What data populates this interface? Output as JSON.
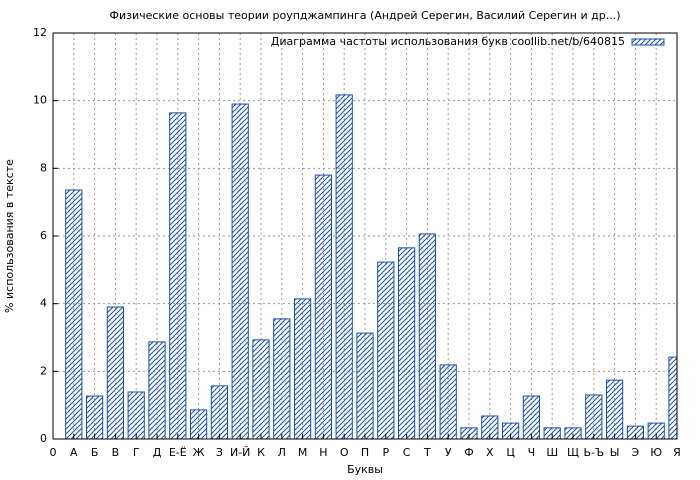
{
  "chart_data": {
    "type": "bar",
    "title": "Физические основы теории роупджампинга (Андрей Серегин, Василий Серегин и др...)",
    "x_label": "Буквы",
    "y_label": "% использования в тексте",
    "x": [
      1,
      2,
      3,
      4,
      5,
      6,
      7,
      8,
      9,
      10,
      11,
      12,
      13,
      14,
      15,
      16,
      17,
      18,
      19,
      20,
      21,
      22,
      23,
      24,
      25,
      26,
      27,
      28,
      29,
      30
    ],
    "series": [
      {
        "name": "Диаграмма частоты использования букв coollib.net/b/640815",
        "color": "#1a4fa0",
        "values": [
          7.36,
          1.27,
          3.9,
          1.39,
          2.87,
          9.64,
          0.86,
          1.57,
          9.9,
          2.93,
          3.55,
          4.14,
          7.8,
          10.17,
          3.13,
          5.23,
          5.65,
          6.06,
          2.19,
          0.33,
          0.68,
          0.47,
          1.27,
          0.33,
          0.33,
          1.3,
          1.74,
          0.38,
          0.47,
          2.42
        ]
      }
    ],
    "xlim": [
      0,
      30
    ],
    "xticks": [
      0,
      {
        "value": 1,
        "label": "А"
      },
      {
        "value": 2,
        "label": "Б"
      },
      {
        "value": 3,
        "label": "В"
      },
      {
        "value": 4,
        "label": "Г"
      },
      {
        "value": 5,
        "label": "Д"
      },
      {
        "value": 6,
        "label": "Е-Ё"
      },
      {
        "value": 7,
        "label": "Ж"
      },
      {
        "value": 8,
        "label": "З"
      },
      {
        "value": 9,
        "label": "И-Й"
      },
      {
        "value": 10,
        "label": "К"
      },
      {
        "value": 11,
        "label": "Л"
      },
      {
        "value": 12,
        "label": "М"
      },
      {
        "value": 13,
        "label": "Н"
      },
      {
        "value": 14,
        "label": "О"
      },
      {
        "value": 15,
        "label": "П"
      },
      {
        "value": 16,
        "label": "Р"
      },
      {
        "value": 17,
        "label": "С"
      },
      {
        "value": 18,
        "label": "Т"
      },
      {
        "value": 19,
        "label": "У"
      },
      {
        "value": 20,
        "label": "Ф"
      },
      {
        "value": 21,
        "label": "Х"
      },
      {
        "value": 22,
        "label": "Ц"
      },
      {
        "value": 23,
        "label": "Ч"
      },
      {
        "value": 24,
        "label": "Ш"
      },
      {
        "value": 25,
        "label": "Щ"
      },
      {
        "value": 26,
        "label": "Ь-Ъ"
      },
      {
        "value": 27,
        "label": "Ы"
      },
      {
        "value": 28,
        "label": "Э"
      },
      {
        "value": 29,
        "label": "Ю"
      },
      {
        "value": 30,
        "label": "Я"
      }
    ],
    "ylim": [
      0,
      12
    ],
    "yticks": [
      0,
      2,
      4,
      6,
      8,
      10,
      12
    ],
    "grid": true,
    "legend": "top-right"
  }
}
